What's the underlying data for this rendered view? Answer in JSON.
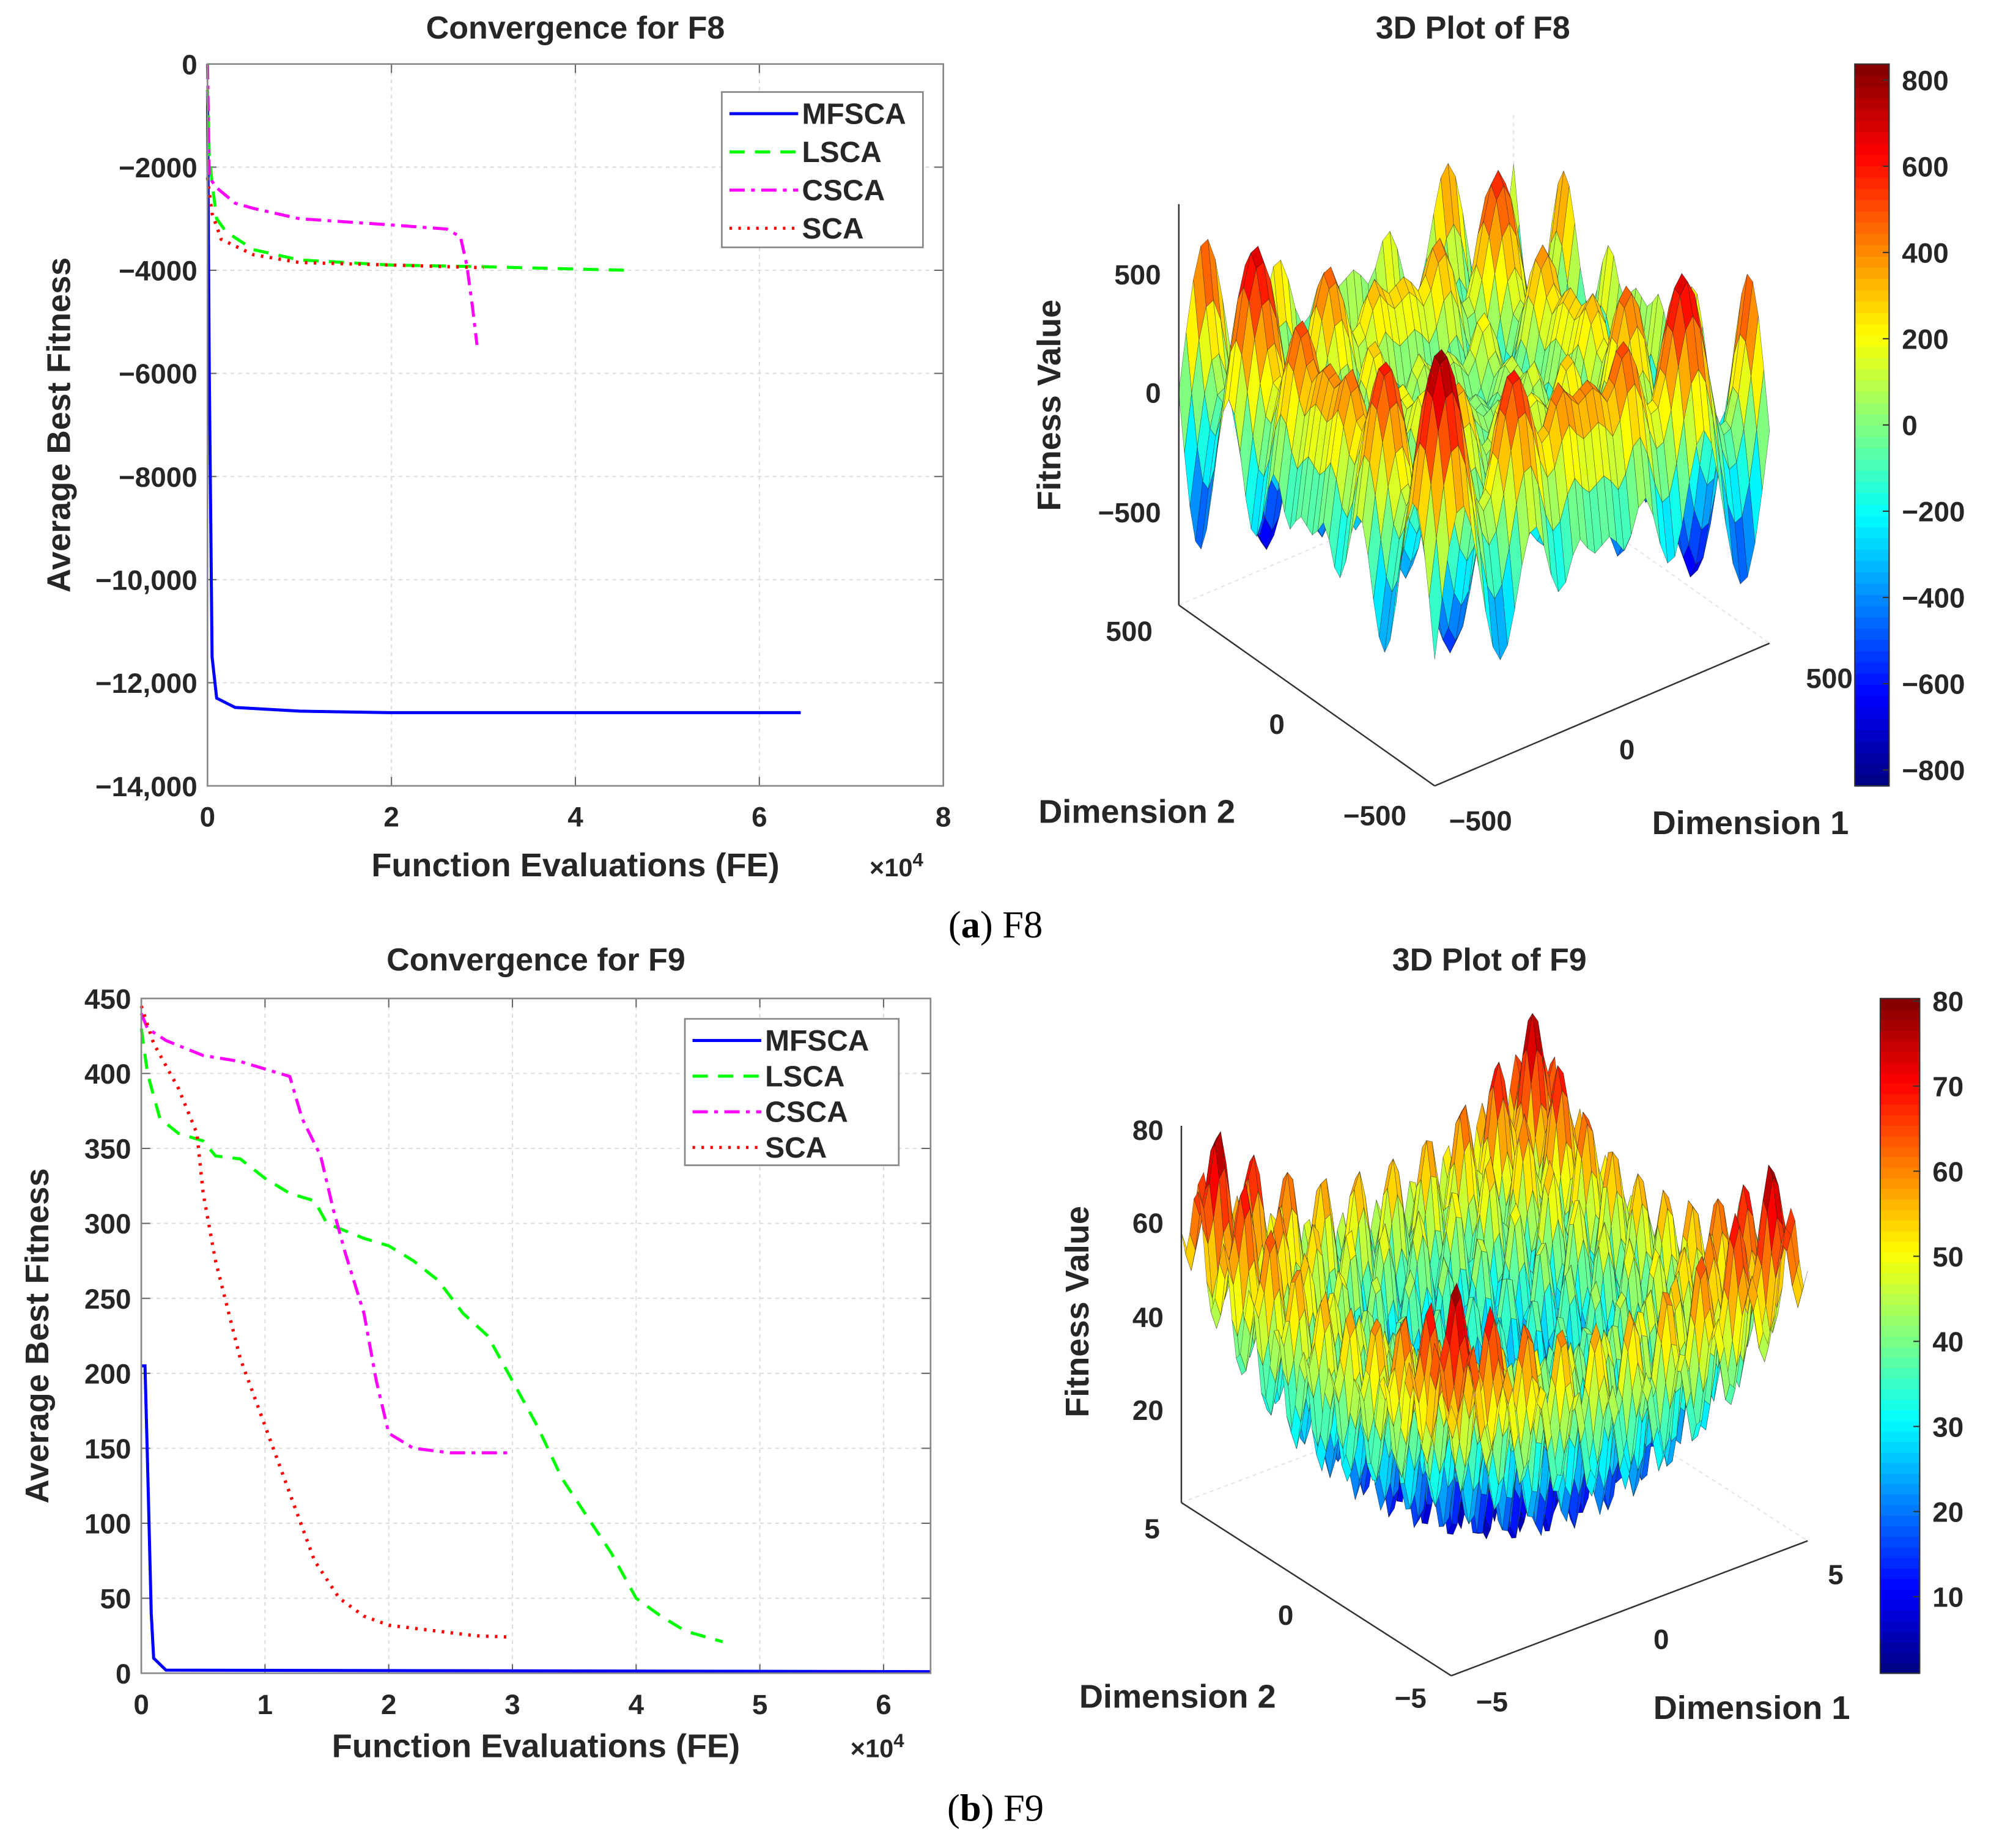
{
  "caption_a": {
    "open": "(",
    "letter": "a",
    "close": ")",
    "label": " F8"
  },
  "caption_b": {
    "open": "(",
    "letter": "b",
    "close": ")",
    "label": " F9"
  },
  "chart_data": [
    {
      "type": "line",
      "title": "Convergence for F8",
      "xlabel": "Function Evaluations (FE)",
      "ylabel": "Average Best Fitness",
      "x_multiplier": "×10",
      "x_multiplier_exp": "4",
      "xlim": [
        0,
        8
      ],
      "ylim": [
        -14000,
        0
      ],
      "grid": true,
      "legend_position": "top-right",
      "xticks": [
        0,
        2,
        4,
        6,
        8
      ],
      "xtick_labels": [
        "0",
        "2",
        "4",
        "6",
        "8"
      ],
      "yticks": [
        0,
        -2000,
        -4000,
        -6000,
        -8000,
        -10000,
        -12000,
        -14000
      ],
      "ytick_labels": [
        "0",
        "−2000",
        "−4000",
        "−6000",
        "−8000",
        "−10,000",
        "−12,000",
        "−14,000"
      ],
      "series": [
        {
          "name": "MFSCA",
          "color": "#0000ff",
          "points": [
            [
              0,
              -500
            ],
            [
              0.02,
              -6000
            ],
            [
              0.05,
              -11500
            ],
            [
              0.1,
              -12300
            ],
            [
              0.3,
              -12480
            ],
            [
              1,
              -12550
            ],
            [
              2,
              -12580
            ],
            [
              6.45,
              -12580
            ]
          ]
        },
        {
          "name": "LSCA",
          "color": "#00ff00",
          "points": [
            [
              0,
              -500
            ],
            [
              0.02,
              -1800
            ],
            [
              0.05,
              -2300
            ],
            [
              0.1,
              -3000
            ],
            [
              0.2,
              -3250
            ],
            [
              0.5,
              -3600
            ],
            [
              1,
              -3800
            ],
            [
              2,
              -3900
            ],
            [
              3,
              -3930
            ],
            [
              4.55,
              -4000
            ]
          ]
        },
        {
          "name": "CSCA",
          "color": "#ff00ff",
          "points": [
            [
              0,
              0
            ],
            [
              0.02,
              -2200
            ],
            [
              0.1,
              -2400
            ],
            [
              0.3,
              -2700
            ],
            [
              0.5,
              -2800
            ],
            [
              1,
              -3000
            ],
            [
              2,
              -3120
            ],
            [
              2.6,
              -3200
            ],
            [
              2.75,
              -3350
            ],
            [
              2.82,
              -3900
            ],
            [
              2.88,
              -4700
            ],
            [
              2.93,
              -5450
            ]
          ]
        },
        {
          "name": "SCA",
          "color": "#ff0000",
          "points": [
            [
              0,
              -2200
            ],
            [
              0.05,
              -2900
            ],
            [
              0.15,
              -3400
            ],
            [
              0.5,
              -3700
            ],
            [
              1,
              -3850
            ],
            [
              2,
              -3900
            ],
            [
              3,
              -3950
            ]
          ]
        }
      ]
    },
    {
      "type": "surface",
      "title": "3D Plot of F8",
      "zlabel": "Fitness Value",
      "xlabel": "Dimension 1",
      "ylabel": "Dimension 2",
      "function": "schwefel",
      "domain": [
        -500,
        500
      ],
      "colorbar_range": [
        -837,
        837
      ],
      "colorbar_ticks": [
        800,
        600,
        400,
        200,
        0,
        -200,
        -400,
        -600,
        -800
      ],
      "colorbar_tick_labels": [
        "800",
        "600",
        "400",
        "200",
        "0",
        "−200",
        "−400",
        "−600",
        "−800"
      ],
      "zticks": [
        "500",
        "0",
        "−500"
      ],
      "dim1_ticks": [
        "−500",
        "0",
        "500"
      ],
      "dim2_ticks": [
        "500",
        "0",
        "−500"
      ]
    },
    {
      "type": "line",
      "title": "Convergence for F9",
      "xlabel": "Function Evaluations (FE)",
      "ylabel": "Average Best Fitness",
      "x_multiplier": "×10",
      "x_multiplier_exp": "4",
      "xlim": [
        0,
        6.38
      ],
      "ylim": [
        0,
        450
      ],
      "grid": true,
      "legend_position": "top-right",
      "xticks": [
        0,
        1,
        2,
        3,
        4,
        5,
        6
      ],
      "xtick_labels": [
        "0",
        "1",
        "2",
        "3",
        "4",
        "5",
        "6"
      ],
      "yticks": [
        450,
        400,
        350,
        300,
        250,
        200,
        150,
        100,
        50,
        0
      ],
      "ytick_labels": [
        "450",
        "400",
        "350",
        "300",
        "250",
        "200",
        "150",
        "100",
        "50",
        "0"
      ],
      "series": [
        {
          "name": "MFSCA",
          "color": "#0000ff",
          "points": [
            [
              0,
              205
            ],
            [
              0.03,
              205
            ],
            [
              0.05,
              140
            ],
            [
              0.08,
              40
            ],
            [
              0.1,
              10
            ],
            [
              0.2,
              2
            ],
            [
              6.38,
              1
            ]
          ]
        },
        {
          "name": "LSCA",
          "color": "#00ff00",
          "points": [
            [
              0,
              430
            ],
            [
              0.05,
              400
            ],
            [
              0.1,
              385
            ],
            [
              0.15,
              370
            ],
            [
              0.3,
              360
            ],
            [
              0.5,
              355
            ],
            [
              0.6,
              345
            ],
            [
              0.8,
              343
            ],
            [
              1,
              330
            ],
            [
              1.2,
              320
            ],
            [
              1.4,
              315
            ],
            [
              1.5,
              300
            ],
            [
              1.8,
              290
            ],
            [
              2,
              285
            ],
            [
              2.2,
              275
            ],
            [
              2.4,
              262
            ],
            [
              2.6,
              240
            ],
            [
              2.8,
              225
            ],
            [
              3,
              195
            ],
            [
              3.2,
              165
            ],
            [
              3.4,
              130
            ],
            [
              3.6,
              105
            ],
            [
              3.8,
              80
            ],
            [
              4,
              50
            ],
            [
              4.2,
              38
            ],
            [
              4.4,
              28
            ],
            [
              4.7,
              21
            ]
          ]
        },
        {
          "name": "CSCA",
          "color": "#ff00ff",
          "points": [
            [
              0,
              440
            ],
            [
              0.05,
              430
            ],
            [
              0.2,
              422
            ],
            [
              0.5,
              412
            ],
            [
              0.8,
              408
            ],
            [
              1,
              403
            ],
            [
              1.2,
              398
            ],
            [
              1.3,
              370
            ],
            [
              1.45,
              345
            ],
            [
              1.55,
              310
            ],
            [
              1.65,
              280
            ],
            [
              1.8,
              240
            ],
            [
              1.9,
              195
            ],
            [
              2,
              160
            ],
            [
              2.2,
              150
            ],
            [
              2.5,
              147
            ],
            [
              3,
              147
            ]
          ]
        },
        {
          "name": "SCA",
          "color": "#ff0000",
          "points": [
            [
              0,
              445
            ],
            [
              0.1,
              420
            ],
            [
              0.3,
              390
            ],
            [
              0.45,
              360
            ],
            [
              0.5,
              320
            ],
            [
              0.6,
              275
            ],
            [
              0.8,
              210
            ],
            [
              1,
              165
            ],
            [
              1.2,
              120
            ],
            [
              1.4,
              75
            ],
            [
              1.6,
              50
            ],
            [
              1.8,
              38
            ],
            [
              2,
              32
            ],
            [
              2.4,
              28
            ],
            [
              2.7,
              25
            ],
            [
              3,
              24
            ]
          ]
        }
      ]
    },
    {
      "type": "surface",
      "title": "3D Plot of F9",
      "zlabel": "Fitness Value",
      "xlabel": "Dimension 1",
      "ylabel": "Dimension 2",
      "function": "rastrigin",
      "domain": [
        -5.12,
        5.12
      ],
      "colorbar_range": [
        1,
        80.3
      ],
      "colorbar_ticks": [
        80,
        70,
        60,
        50,
        40,
        30,
        20,
        10
      ],
      "colorbar_tick_labels": [
        "80",
        "70",
        "60",
        "50",
        "40",
        "30",
        "20",
        "10"
      ],
      "zticks": [
        "80",
        "60",
        "40",
        "20"
      ],
      "dim1_ticks": [
        "−5",
        "0",
        "5"
      ],
      "dim2_ticks": [
        "5",
        "0",
        "−5"
      ]
    }
  ]
}
